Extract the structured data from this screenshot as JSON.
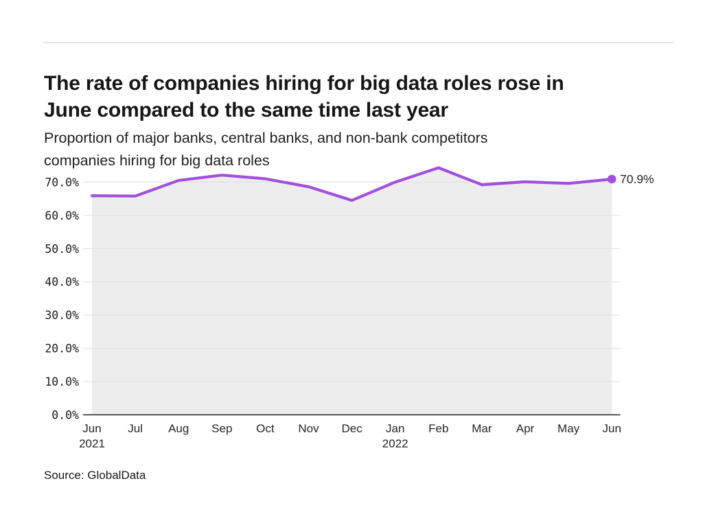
{
  "page": {
    "source": "Source: GlobalData"
  },
  "chart_data": {
    "type": "line",
    "title": "The rate of companies hiring for big data roles rose in June compared to the same time last year",
    "title_lines": [
      "The rate of companies hiring for big data roles rose in",
      "June compared to the same time last year"
    ],
    "subtitle": "Proportion of major banks, central banks, and non-bank competitors companies hiring for big data roles",
    "subtitle_lines": [
      "Proportion of major banks, central banks, and non-bank competitors",
      "companies hiring for big data roles"
    ],
    "categories": [
      "Jun 2021",
      "Jul",
      "Aug",
      "Sep",
      "Oct",
      "Nov",
      "Dec",
      "Jan 2022",
      "Feb",
      "Mar",
      "Apr",
      "May",
      "Jun"
    ],
    "x_months": [
      "Jun",
      "Jul",
      "Aug",
      "Sep",
      "Oct",
      "Nov",
      "Dec",
      "Jan",
      "Feb",
      "Mar",
      "Apr",
      "May",
      "Jun"
    ],
    "x_years": {
      "0": "2021",
      "7": "2022"
    },
    "values": [
      65.9,
      65.8,
      70.5,
      72.1,
      71.0,
      68.6,
      64.5,
      70.0,
      74.3,
      69.2,
      70.1,
      69.6,
      70.9
    ],
    "end_label": "70.9%",
    "yticks": [
      "0.0%",
      "10.0%",
      "20.0%",
      "30.0%",
      "40.0%",
      "50.0%",
      "60.0%",
      "70.0%"
    ],
    "ytick_values": [
      0,
      10,
      20,
      30,
      40,
      50,
      60,
      70
    ],
    "ylim": [
      0,
      75
    ],
    "xlabel": "",
    "ylabel": "",
    "grid": true,
    "legend": "none",
    "line_color": "#a24fdf",
    "point_color": "#a24fdf",
    "fill_color": "#ededed",
    "grid_color": "#e2e2e2",
    "axis_color": "#262626",
    "text_color": "#161616"
  }
}
